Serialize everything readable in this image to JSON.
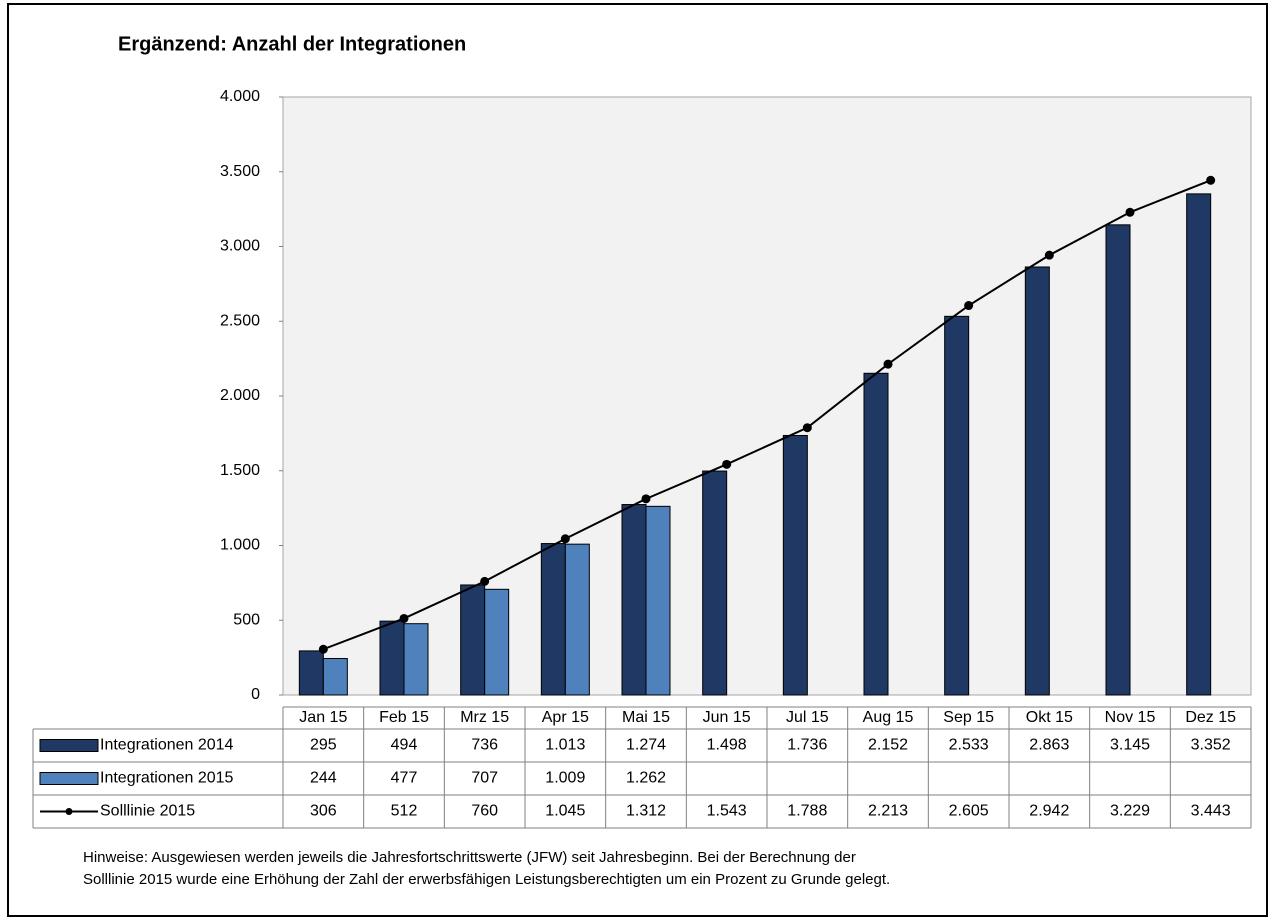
{
  "chart_data": {
    "type": "bar",
    "title": "Ergänzend: Anzahl der Integrationen",
    "categories": [
      "Jan 15",
      "Feb 15",
      "Mrz 15",
      "Apr 15",
      "Mai 15",
      "Jun 15",
      "Jul 15",
      "Aug 15",
      "Sep 15",
      "Okt 15",
      "Nov 15",
      "Dez 15"
    ],
    "series": [
      {
        "name": "Integrationen 2014",
        "type": "bar",
        "color": "#1f3864",
        "values": [
          295,
          494,
          736,
          1013,
          1274,
          1498,
          1736,
          2152,
          2533,
          2863,
          3145,
          3352
        ],
        "value_labels": [
          "295",
          "494",
          "736",
          "1.013",
          "1.274",
          "1.498",
          "1.736",
          "2.152",
          "2.533",
          "2.863",
          "3.145",
          "3.352"
        ]
      },
      {
        "name": "Integrationen 2015",
        "type": "bar",
        "color": "#4f81bd",
        "values": [
          244,
          477,
          707,
          1009,
          1262,
          null,
          null,
          null,
          null,
          null,
          null,
          null
        ],
        "value_labels": [
          "244",
          "477",
          "707",
          "1.009",
          "1.262",
          null,
          null,
          null,
          null,
          null,
          null,
          null
        ]
      },
      {
        "name": "Solllinie 2015",
        "type": "line",
        "color": "#000000",
        "values": [
          306,
          512,
          760,
          1045,
          1312,
          1543,
          1788,
          2213,
          2605,
          2942,
          3229,
          3443
        ],
        "value_labels": [
          "306",
          "512",
          "760",
          "1.045",
          "1.312",
          "1.543",
          "1.788",
          "2.213",
          "2.605",
          "2.942",
          "3.229",
          "3.443"
        ]
      }
    ],
    "ylim": [
      0,
      4000
    ],
    "yticks": [
      0,
      500,
      {
        "value": 1000,
        "label": "1.000"
      },
      {
        "value": 1500,
        "label": "1.500"
      },
      {
        "value": 2000,
        "label": "2.000"
      },
      {
        "value": 2500,
        "label": "2.500"
      },
      {
        "value": 3000,
        "label": "3.000"
      },
      {
        "value": 3500,
        "label": "3.500"
      },
      {
        "value": 4000,
        "label": "4.000"
      }
    ],
    "notes": [
      "Hinweise:  Ausgewiesen  werden  jeweils  die Jahresfortschrittswerte  (JFW) seit Jahresbeginn.  Bei der Berechnung der",
      "Solllinie  2015  wurde eine Erhöhung der Zahl der erwerbsfähigen Leistungsberechtigten  um ein Prozent zu Grunde gelegt."
    ]
  }
}
